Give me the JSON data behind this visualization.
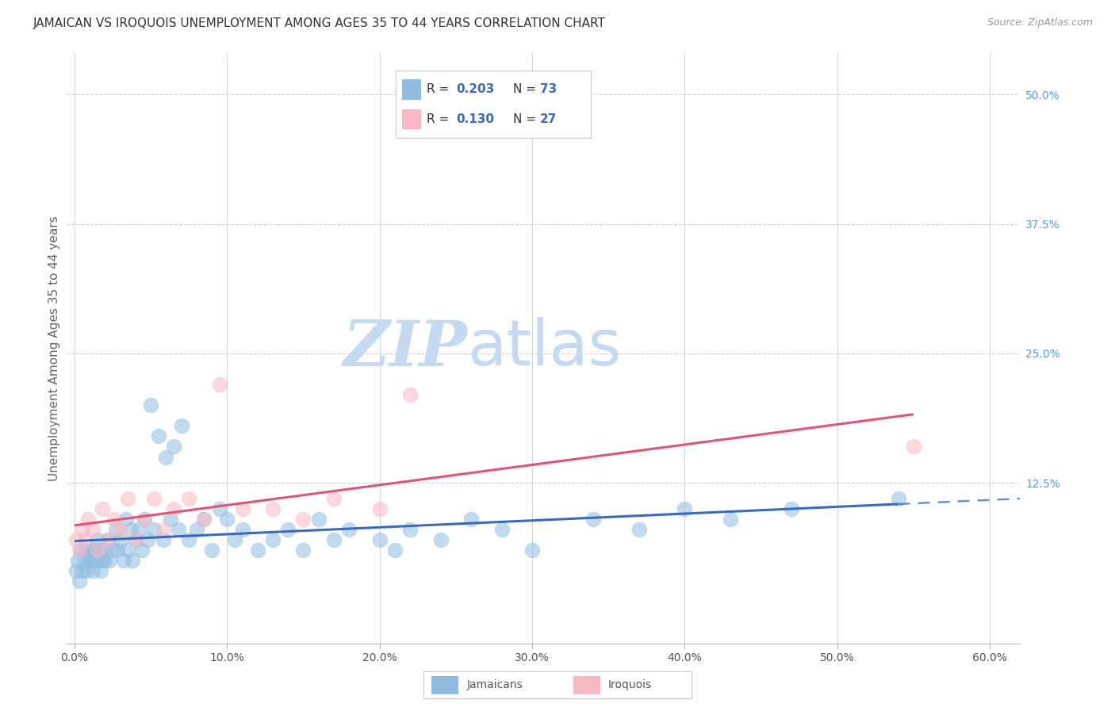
{
  "title": "JAMAICAN VS IROQUOIS UNEMPLOYMENT AMONG AGES 35 TO 44 YEARS CORRELATION CHART",
  "source": "Source: ZipAtlas.com",
  "xlabel_ticks": [
    "0.0%",
    "10.0%",
    "20.0%",
    "30.0%",
    "40.0%",
    "50.0%",
    "60.0%"
  ],
  "xlabel_vals": [
    0.0,
    0.1,
    0.2,
    0.3,
    0.4,
    0.5,
    0.6
  ],
  "ylabel_ticks_right": [
    "50.0%",
    "37.5%",
    "25.0%",
    "12.5%"
  ],
  "ylabel_vals_right": [
    0.5,
    0.375,
    0.25,
    0.125
  ],
  "ylabel_label": "Unemployment Among Ages 35 to 44 years",
  "xlim": [
    -0.005,
    0.62
  ],
  "ylim": [
    -0.03,
    0.54
  ],
  "jamaicans_R": 0.203,
  "jamaicans_N": 73,
  "iroquois_R": 0.13,
  "iroquois_N": 27,
  "blue_scatter_color": "#90bde0",
  "pink_scatter_color": "#f7b8c4",
  "blue_line_color": "#3a6abf",
  "pink_line_color": "#e05575",
  "watermark_zip_color": "#c5daf0",
  "watermark_atlas_color": "#c5daf0",
  "grid_color": "#cccccc",
  "title_color": "#333333",
  "tick_color_right": "#5599dd",
  "legend_box_color": "#cccccc",
  "jamaicans_x": [
    0.001,
    0.002,
    0.003,
    0.004,
    0.005,
    0.006,
    0.007,
    0.008,
    0.009,
    0.01,
    0.011,
    0.012,
    0.013,
    0.014,
    0.015,
    0.016,
    0.017,
    0.018,
    0.019,
    0.02,
    0.022,
    0.023,
    0.025,
    0.027,
    0.028,
    0.03,
    0.032,
    0.034,
    0.035,
    0.037,
    0.038,
    0.04,
    0.042,
    0.044,
    0.046,
    0.048,
    0.05,
    0.052,
    0.055,
    0.058,
    0.06,
    0.063,
    0.065,
    0.068,
    0.07,
    0.075,
    0.08,
    0.085,
    0.09,
    0.095,
    0.1,
    0.105,
    0.11,
    0.12,
    0.13,
    0.14,
    0.15,
    0.16,
    0.17,
    0.18,
    0.2,
    0.21,
    0.22,
    0.24,
    0.26,
    0.28,
    0.3,
    0.34,
    0.37,
    0.4,
    0.43,
    0.47,
    0.54
  ],
  "jamaicans_y": [
    0.04,
    0.05,
    0.03,
    0.06,
    0.04,
    0.05,
    0.06,
    0.04,
    0.05,
    0.06,
    0.05,
    0.04,
    0.06,
    0.05,
    0.07,
    0.06,
    0.04,
    0.05,
    0.06,
    0.05,
    0.07,
    0.05,
    0.06,
    0.08,
    0.06,
    0.07,
    0.05,
    0.09,
    0.06,
    0.08,
    0.05,
    0.07,
    0.08,
    0.06,
    0.09,
    0.07,
    0.2,
    0.08,
    0.17,
    0.07,
    0.15,
    0.09,
    0.16,
    0.08,
    0.18,
    0.07,
    0.08,
    0.09,
    0.06,
    0.1,
    0.09,
    0.07,
    0.08,
    0.06,
    0.07,
    0.08,
    0.06,
    0.09,
    0.07,
    0.08,
    0.07,
    0.06,
    0.08,
    0.07,
    0.09,
    0.08,
    0.06,
    0.09,
    0.08,
    0.1,
    0.09,
    0.1,
    0.11
  ],
  "iroquois_x": [
    0.001,
    0.003,
    0.005,
    0.007,
    0.009,
    0.012,
    0.015,
    0.018,
    0.022,
    0.026,
    0.03,
    0.035,
    0.04,
    0.046,
    0.052,
    0.058,
    0.065,
    0.075,
    0.085,
    0.095,
    0.11,
    0.13,
    0.15,
    0.17,
    0.2,
    0.22,
    0.55
  ],
  "iroquois_y": [
    0.07,
    0.06,
    0.08,
    0.07,
    0.09,
    0.08,
    0.06,
    0.1,
    0.07,
    0.09,
    0.08,
    0.11,
    0.07,
    0.09,
    0.11,
    0.08,
    0.1,
    0.11,
    0.09,
    0.22,
    0.1,
    0.1,
    0.09,
    0.11,
    0.1,
    0.21,
    0.16
  ]
}
